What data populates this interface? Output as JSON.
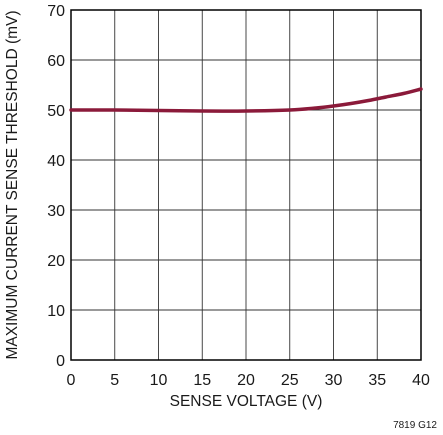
{
  "chart_data": {
    "type": "line",
    "title": "",
    "xlabel": "SENSE VOLTAGE (V)",
    "ylabel": "MAXIMUM CURRENT SENSE THRESHOLD (mV)",
    "xlim": [
      0,
      40
    ],
    "ylim": [
      0,
      70
    ],
    "xticks": [
      0,
      5,
      10,
      15,
      20,
      25,
      30,
      35,
      40
    ],
    "yticks": [
      0,
      10,
      20,
      30,
      40,
      50,
      60,
      70
    ],
    "grid": true,
    "line_color": "#8b1a3a",
    "series": [
      {
        "x": [
          0,
          5,
          10,
          15,
          20,
          25,
          28,
          30,
          32,
          34,
          36,
          38,
          40
        ],
        "y": [
          50.0,
          50.0,
          49.9,
          49.8,
          49.8,
          50.0,
          50.4,
          50.8,
          51.3,
          51.9,
          52.6,
          53.3,
          54.2
        ]
      }
    ]
  },
  "figure_id": "7819 G12"
}
